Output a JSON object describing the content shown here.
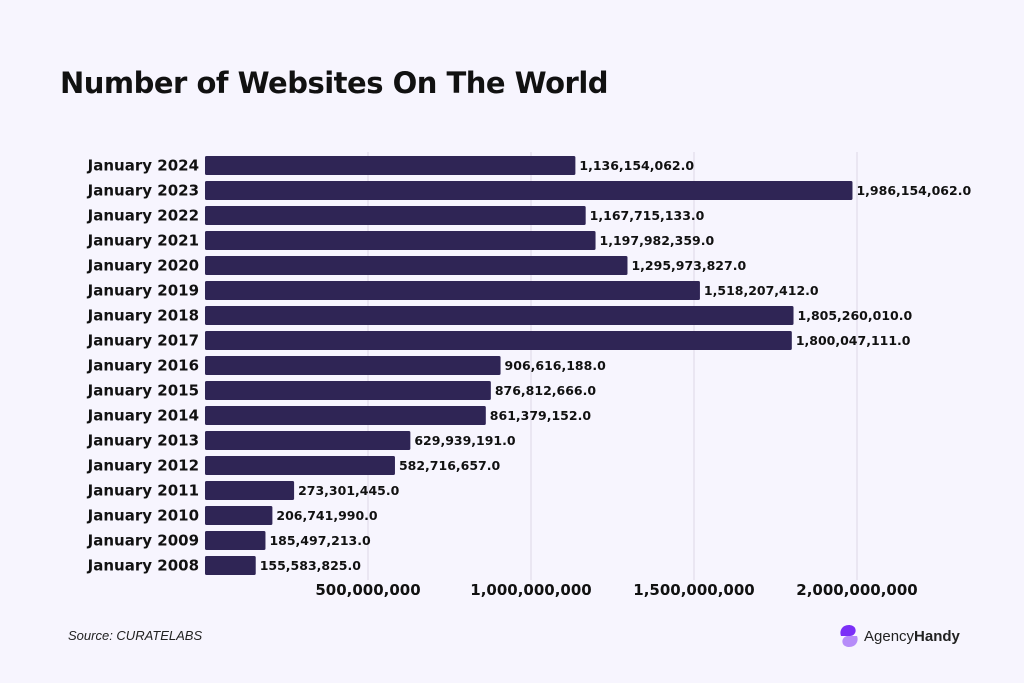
{
  "chart_data": {
    "type": "bar",
    "orientation": "horizontal",
    "title": "Number of Websites On The World",
    "categories": [
      "January 2024",
      "January 2023",
      "January 2022",
      "January 2021",
      "January 2020",
      "January 2019",
      "January 2018",
      "January 2017",
      "January 2016",
      "January 2015",
      "January 2014",
      "January 2013",
      "January 2012",
      "January 2011",
      "January 2010",
      "January 2009",
      "January 2008"
    ],
    "values": [
      1136154062,
      1986154062,
      1167715133,
      1197982359,
      1295973827,
      1518207412,
      1805260010,
      1800047111,
      906616188,
      876812666,
      861379152,
      629939191,
      582716657,
      273301445,
      206741990,
      185497213,
      155583825
    ],
    "data_labels": [
      "1,136,154,062.0",
      "1,986,154,062.0",
      "1,167,715,133.0",
      "1,197,982,359.0",
      "1,295,973,827.0",
      "1,518,207,412.0",
      "1,805,260,010.0",
      "1,800,047,111.0",
      "906,616,188.0",
      "876,812,666.0",
      "861,379,152.0",
      "629,939,191.0",
      "582,716,657.0",
      "273,301,445.0",
      "206,741,990.0",
      "185,497,213.0",
      "155,583,825.0"
    ],
    "x_ticks": [
      500000000,
      1000000000,
      1500000000,
      2000000000
    ],
    "x_tick_labels": [
      "500,000,000",
      "1,000,000,000",
      "1,500,000,000",
      "2,000,000,000"
    ],
    "xlim": [
      0,
      2000000000
    ],
    "xlabel": "",
    "ylabel": "",
    "grid": "vertical",
    "bar_color": "#2f2555"
  },
  "footer": {
    "source": "Source: CURATELABS",
    "logo_text_regular": "Agency",
    "logo_text_bold": "Handy",
    "logo_colors": [
      "#7b2ff7",
      "#b68cf9"
    ]
  }
}
